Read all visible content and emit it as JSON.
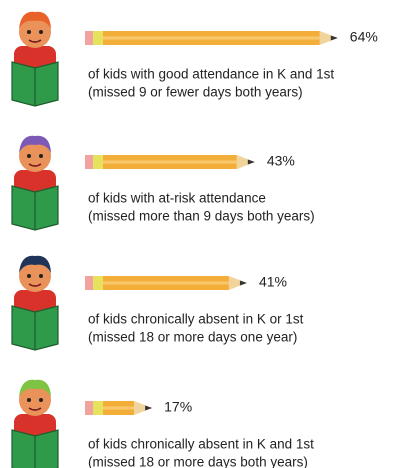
{
  "chart_data": {
    "type": "pencil-bar",
    "categories": [
      "of kids with good attendance in K and 1st",
      "of kids with at-risk attendance",
      "of kids chronically absent in K or 1st",
      "of kids chronically absent in K and 1st"
    ],
    "notes": [
      "(missed 9 or fewer days both years)",
      "(missed more than 9 days both years)",
      "(missed 18 or more days one year)",
      "(missed 18 or more days both years)"
    ],
    "values": [
      64,
      43,
      41,
      17
    ],
    "value_labels": [
      "64%",
      "43%",
      "41%",
      "17%"
    ],
    "color": "#f3ae3a"
  }
}
